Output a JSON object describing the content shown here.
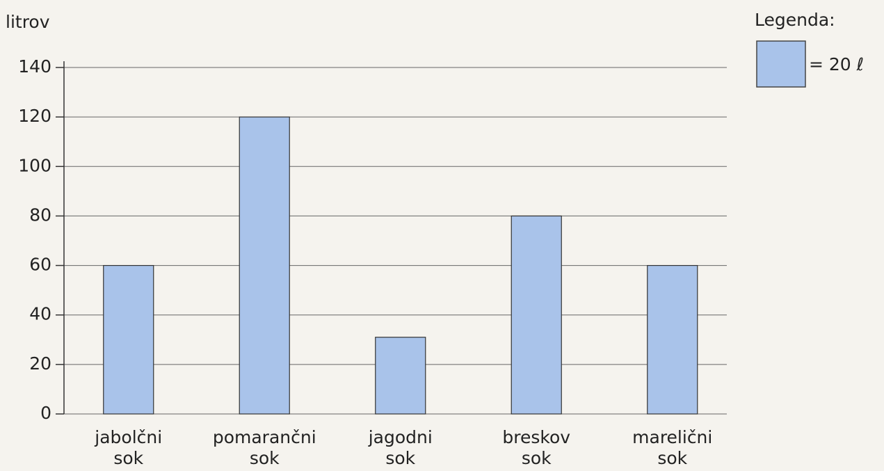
{
  "chart_data": {
    "type": "bar",
    "y_label": "litrov",
    "categories": [
      "jabolčni\nsok",
      "pomarančni\nsok",
      "jagodni\nsok",
      "breskov\nsok",
      "marelični\nsok"
    ],
    "values": [
      60,
      120,
      31,
      80,
      60
    ],
    "color": "#a9c3ea",
    "ylim": [
      0,
      140
    ],
    "yticks": [
      0,
      20,
      40,
      60,
      80,
      100,
      120,
      140
    ],
    "grid": true,
    "legend": {
      "title": "Legenda:",
      "label": "= 20 ℓ"
    }
  }
}
